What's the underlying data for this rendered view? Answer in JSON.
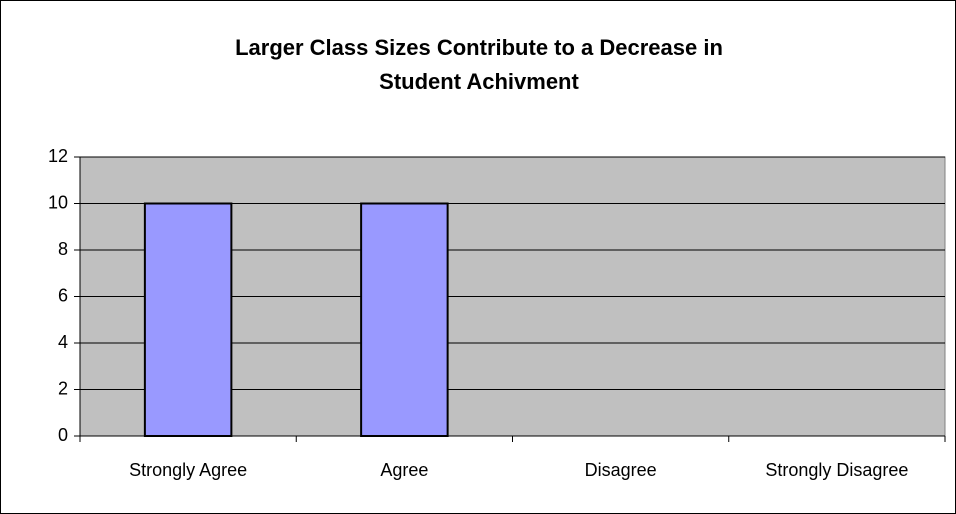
{
  "chart_data": {
    "type": "bar",
    "title": "Larger Class Sizes Contribute to a Decrease in Student Achivment",
    "categories": [
      "Strongly Agree",
      "Agree",
      "Disagree",
      "Strongly Disagree"
    ],
    "values": [
      10,
      10,
      0,
      0
    ],
    "color": "#9999ff",
    "ylim": [
      0,
      12
    ],
    "yticks": [
      0,
      2,
      4,
      6,
      8,
      10,
      12
    ],
    "grid": true
  }
}
